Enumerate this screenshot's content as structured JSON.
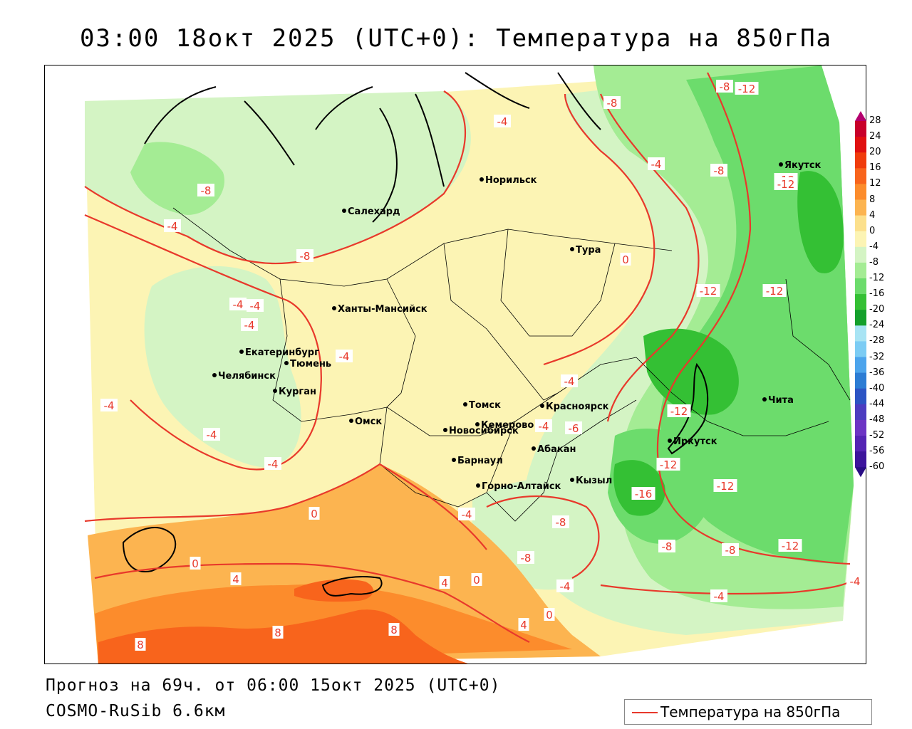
{
  "header": {
    "title": "03:00 18окт 2025 (UTC+0): Температура на 850гПа"
  },
  "footer": {
    "forecast": "Прогноз на 69ч. от 06:00 15окт 2025 (UTC+0)",
    "model": "COSMO-RuSib 6.6км"
  },
  "legend": {
    "label": "Температура на 850гПа",
    "line_color": "#e8392b"
  },
  "colorbar": {
    "ticks": [
      "28",
      "24",
      "20",
      "16",
      "12",
      "8",
      "4",
      "0",
      "-4",
      "-8",
      "-12",
      "-16",
      "-20",
      "-24",
      "-28",
      "-32",
      "-36",
      "-40",
      "-44",
      "-48",
      "-52",
      "-56",
      "-60"
    ],
    "colors": [
      "#b4006e",
      "#c8002a",
      "#e01010",
      "#f03c0c",
      "#f8641c",
      "#fc8c2c",
      "#fcb450",
      "#fce08c",
      "#fcf4b4",
      "#d4f4c4",
      "#a4ec94",
      "#6cdc6c",
      "#34c034",
      "#14a02c",
      "#a8e4f4",
      "#7cccf4",
      "#4ca4ec",
      "#2c7cd4",
      "#2c54c4",
      "#4c3cc0",
      "#6c34c4",
      "#5424b4",
      "#3c149c",
      "#280c84"
    ]
  },
  "cities": [
    {
      "name": "Норильск"
    },
    {
      "name": "Якутск"
    },
    {
      "name": "Салехард"
    },
    {
      "name": "Тура"
    },
    {
      "name": "Ханты-Мансийск"
    },
    {
      "name": "Екатеринбург"
    },
    {
      "name": "Тюмень"
    },
    {
      "name": "Челябинск"
    },
    {
      "name": "Курган"
    },
    {
      "name": "Омск"
    },
    {
      "name": "Новосибирск"
    },
    {
      "name": "Томск"
    },
    {
      "name": "Кемерово"
    },
    {
      "name": "Красноярск"
    },
    {
      "name": "Абакан"
    },
    {
      "name": "Барнаул"
    },
    {
      "name": "Горно-Алтайск"
    },
    {
      "name": "Кызыл"
    },
    {
      "name": "Иркутск"
    },
    {
      "name": "Чита"
    }
  ],
  "isotherm_labels": [
    {
      "text": "-12"
    },
    {
      "text": "-8"
    },
    {
      "text": "-4"
    },
    {
      "text": "-8"
    },
    {
      "text": "-4"
    },
    {
      "text": "-8"
    },
    {
      "text": "-12"
    },
    {
      "text": "-8"
    },
    {
      "text": "-4"
    },
    {
      "text": "-8"
    },
    {
      "text": "-4"
    },
    {
      "text": "0"
    },
    {
      "text": "-12"
    },
    {
      "text": "-12"
    },
    {
      "text": "-4"
    },
    {
      "text": "-4"
    },
    {
      "text": "-4"
    },
    {
      "text": "-4"
    },
    {
      "text": "-4"
    },
    {
      "text": "-4"
    },
    {
      "text": "-4"
    },
    {
      "text": "-4"
    },
    {
      "text": "-6"
    },
    {
      "text": "-12"
    },
    {
      "text": "-12"
    },
    {
      "text": "-12"
    },
    {
      "text": "-12"
    },
    {
      "text": "-16"
    },
    {
      "text": "0"
    },
    {
      "text": "-4"
    },
    {
      "text": "-8"
    },
    {
      "text": "-12"
    },
    {
      "text": "-8"
    },
    {
      "text": "-8"
    },
    {
      "text": "0"
    },
    {
      "text": "4"
    },
    {
      "text": "4"
    },
    {
      "text": "0"
    },
    {
      "text": "-4"
    },
    {
      "text": "-4"
    },
    {
      "text": "-4"
    },
    {
      "text": "0"
    },
    {
      "text": "4"
    },
    {
      "text": "8"
    },
    {
      "text": "8"
    },
    {
      "text": "8"
    },
    {
      "text": "-8"
    }
  ]
}
